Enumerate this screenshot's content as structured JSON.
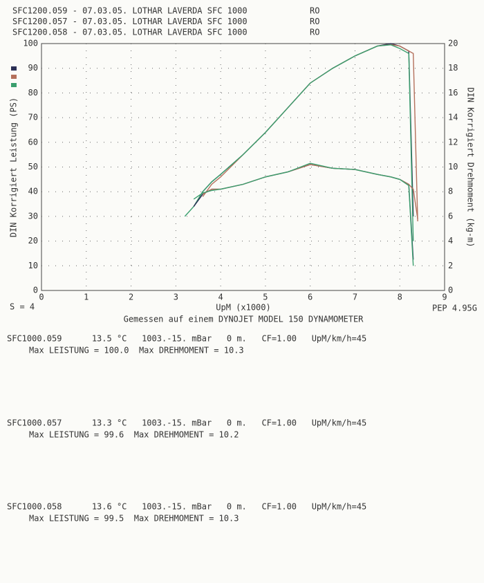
{
  "header": [
    {
      "run": "SFC1200.059 - 07.03.05. LOTHAR LAVERDA SFC 1000",
      "code": "RO"
    },
    {
      "run": "SFC1200.057 - 07.03.05. LOTHAR LAVERDA SFC 1000",
      "code": "RO"
    },
    {
      "run": "SFC1200.058 - 07.03.05. LOTHAR LAVERDA SFC 1000",
      "code": "RO"
    }
  ],
  "chart_data": {
    "type": "line",
    "ylabel": "DIN Korrigiert Leistung (PS)",
    "y2label": "DIN Korrigiert Drehmoment (kg-m)",
    "xlabel": "UpM (x1000)",
    "note_left": "S = 4",
    "note_right": "PEP 4.95G",
    "subtitle": "Gemessen auf einem DYNOJET MODEL 150 DYNAMOMETER",
    "xlim": [
      0,
      9
    ],
    "xticks": [
      0,
      1,
      2,
      3,
      4,
      5,
      6,
      7,
      8,
      9
    ],
    "ylim": [
      0,
      100
    ],
    "yticks": [
      0,
      10,
      20,
      30,
      40,
      50,
      60,
      70,
      80,
      90,
      100
    ],
    "y2lim": [
      0,
      20
    ],
    "y2ticks": [
      0,
      2,
      4,
      6,
      8,
      10,
      12,
      14,
      16,
      18,
      20
    ],
    "grid": true,
    "x": [
      3.2,
      3.4,
      3.6,
      3.8,
      4,
      4.5,
      5,
      5.5,
      6,
      6.5,
      7,
      7.5,
      7.8,
      8,
      8.2,
      8.3,
      8.4
    ],
    "series": [
      {
        "name": "SFC1200.059",
        "color": "#2b2f55",
        "values": [
          null,
          34,
          40,
          44,
          47,
          55,
          64,
          74,
          84,
          90,
          95,
          99,
          100,
          99,
          97,
          30,
          null
        ]
      },
      {
        "name": "SFC1200.057",
        "color": "#b4705c",
        "values": [
          null,
          null,
          38,
          43,
          46,
          55,
          64,
          74,
          84,
          90,
          95,
          99,
          99.6,
          99,
          97,
          96,
          28
        ]
      },
      {
        "name": "SFC1200.058",
        "color": "#3a9f6e",
        "values": [
          30,
          34,
          40,
          44,
          47,
          55,
          64,
          74,
          84,
          90,
          95,
          99,
          99.5,
          98,
          96,
          20,
          null
        ]
      },
      {
        "color": "#2b2f55",
        "axis": "y2",
        "values": [
          null,
          6.8,
          7.8,
          8.2,
          8.2,
          8.6,
          9.2,
          9.6,
          10.2,
          9.9,
          9.8,
          9.4,
          9.2,
          9.0,
          8.6,
          2.5,
          null
        ]
      },
      {
        "color": "#b4705c",
        "axis": "y2",
        "values": [
          null,
          null,
          7.8,
          8.2,
          8.2,
          8.6,
          9.2,
          9.6,
          10.2,
          9.9,
          9.8,
          9.4,
          9.2,
          9.0,
          8.6,
          8.2,
          5.8
        ]
      },
      {
        "color": "#3a9f6e",
        "axis": "y2",
        "values": [
          null,
          7.4,
          7.9,
          8.1,
          8.2,
          8.6,
          9.2,
          9.6,
          10.3,
          9.9,
          9.8,
          9.4,
          9.2,
          9.0,
          8.5,
          2.0,
          null
        ]
      }
    ]
  },
  "footer": [
    {
      "line1": "SFC1000.059      13.5 °C   1003.-15. mBar   0 m.   CF=1.00   UpM/km/h=45",
      "line2": "Max LEISTUNG = 100.0  Max DREHMOMENT = 10.3"
    },
    {
      "line1": "SFC1000.057      13.3 °C   1003.-15. mBar   0 m.   CF=1.00   UpM/km/h=45",
      "line2": "Max LEISTUNG = 99.6  Max DREHMOMENT = 10.2"
    },
    {
      "line1": "SFC1000.058      13.6 °C   1003.-15. mBar   0 m.   CF=1.00   UpM/km/h=45",
      "line2": "Max LEISTUNG = 99.5  Max DREHMOMENT = 10.3"
    }
  ]
}
